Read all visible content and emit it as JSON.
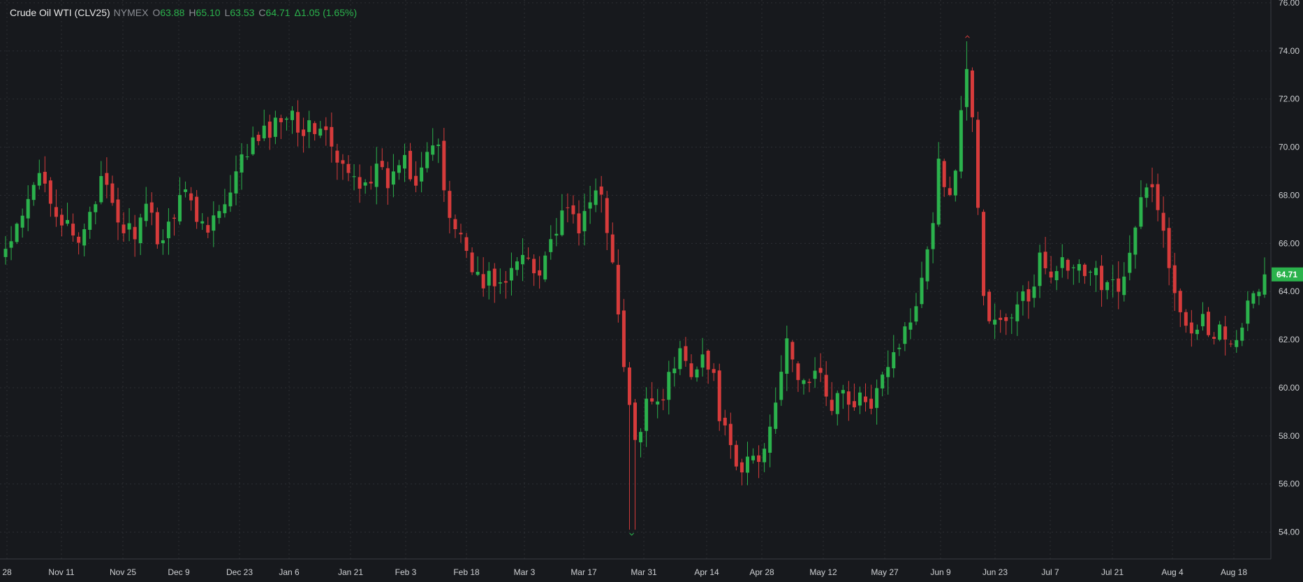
{
  "window": {
    "title": "Crude Oil WTI (CLV25) chart"
  },
  "legend": {
    "symbol": "Crude Oil WTI (CLV25)",
    "exchange": "NYMEX",
    "open_label": "O",
    "open": "63.88",
    "high_label": "H",
    "high": "65.10",
    "low_label": "L",
    "low": "63.53",
    "close_label": "C",
    "close": "64.71",
    "change": "Δ1.05 (1.65%)"
  },
  "last_price_tag": "64.71",
  "colors": {
    "background": "#17191d",
    "up": "#2bb24c",
    "down": "#d63b3b",
    "grid": "#2c2f34",
    "tag": "#2bb24c"
  },
  "chart_data": {
    "type": "candlestick",
    "title": "Crude Oil WTI (CLV25)",
    "x_tick_labels": [
      "28",
      "Nov 11",
      "Nov 25",
      "Dec 9",
      "Dec 23",
      "Jan 6",
      "Jan 21",
      "Feb 3",
      "Feb 18",
      "Mar 3",
      "Mar 17",
      "Mar 31",
      "Apr 14",
      "Apr 28",
      "May 12",
      "May 27",
      "Jun 9",
      "Jun 23",
      "Jul 7",
      "Jul 21",
      "Aug 4",
      "Aug 18"
    ],
    "y_ticks": [
      "54.00",
      "56.00",
      "58.00",
      "60.00",
      "62.00",
      "64.00",
      "66.00",
      "68.00",
      "70.00",
      "72.00",
      "74.00",
      "76.00"
    ],
    "ylim": [
      53.0,
      76.0
    ],
    "grid": true,
    "annotations": {
      "high_marker": 74.6,
      "low_marker": 53.9
    },
    "close_path": [
      {
        "t": 0,
        "c": 65.7
      },
      {
        "t": 6,
        "c": 66.6
      },
      {
        "t": 11,
        "c": 67.9
      },
      {
        "t": 16,
        "c": 69.2
      },
      {
        "t": 22,
        "c": 67.4
      },
      {
        "t": 28,
        "c": 66.4
      },
      {
        "t": 32,
        "c": 65.8
      },
      {
        "t": 37,
        "c": 67.5
      },
      {
        "t": 43,
        "c": 68.6
      },
      {
        "t": 48,
        "c": 67.1
      },
      {
        "t": 53,
        "c": 66.5
      },
      {
        "t": 58,
        "c": 66.6
      },
      {
        "t": 63,
        "c": 67.4
      },
      {
        "t": 68,
        "c": 66.0
      },
      {
        "t": 73,
        "c": 67.0
      },
      {
        "t": 78,
        "c": 68.6
      },
      {
        "t": 83,
        "c": 67.2
      },
      {
        "t": 88,
        "c": 66.8
      },
      {
        "t": 93,
        "c": 67.2
      },
      {
        "t": 98,
        "c": 67.6
      },
      {
        "t": 105,
        "c": 69.7
      },
      {
        "t": 110,
        "c": 70.2
      },
      {
        "t": 115,
        "c": 70.6
      },
      {
        "t": 120,
        "c": 71.0
      },
      {
        "t": 125,
        "c": 71.8
      },
      {
        "t": 130,
        "c": 70.8
      },
      {
        "t": 135,
        "c": 70.7
      },
      {
        "t": 140,
        "c": 71.0
      },
      {
        "t": 145,
        "c": 69.4
      },
      {
        "t": 150,
        "c": 68.9
      },
      {
        "t": 155,
        "c": 68.6
      },
      {
        "t": 160,
        "c": 68.8
      },
      {
        "t": 163,
        "c": 69.0
      },
      {
        "t": 170,
        "c": 68.4
      },
      {
        "t": 175,
        "c": 70.0
      },
      {
        "t": 180,
        "c": 68.6
      },
      {
        "t": 185,
        "c": 69.9
      },
      {
        "t": 190,
        "c": 70.1
      },
      {
        "t": 195,
        "c": 67.3
      },
      {
        "t": 200,
        "c": 66.4
      },
      {
        "t": 205,
        "c": 65.4
      },
      {
        "t": 210,
        "c": 64.1
      },
      {
        "t": 214,
        "c": 64.7
      },
      {
        "t": 219,
        "c": 64.1
      },
      {
        "t": 224,
        "c": 64.9
      },
      {
        "t": 229,
        "c": 65.7
      },
      {
        "t": 234,
        "c": 64.8
      },
      {
        "t": 239,
        "c": 65.9
      },
      {
        "t": 244,
        "c": 66.8
      },
      {
        "t": 249,
        "c": 67.3
      },
      {
        "t": 254,
        "c": 66.6
      },
      {
        "t": 259,
        "c": 68.0
      },
      {
        "t": 263,
        "c": 68.4
      },
      {
        "t": 268,
        "c": 64.6
      },
      {
        "t": 272,
        "c": 61.3
      },
      {
        "t": 276,
        "c": 58.3
      },
      {
        "t": 279,
        "c": 57.1
      },
      {
        "t": 283,
        "c": 60.1
      },
      {
        "t": 287,
        "c": 59.4
      },
      {
        "t": 292,
        "c": 60.2
      },
      {
        "t": 297,
        "c": 61.5
      },
      {
        "t": 302,
        "c": 60.8
      },
      {
        "t": 307,
        "c": 61.4
      },
      {
        "t": 312,
        "c": 60.3
      },
      {
        "t": 316,
        "c": 58.4
      },
      {
        "t": 320,
        "c": 57.1
      },
      {
        "t": 324,
        "c": 56.2
      },
      {
        "t": 328,
        "c": 57.4
      },
      {
        "t": 332,
        "c": 56.9
      },
      {
        "t": 336,
        "c": 58.2
      },
      {
        "t": 340,
        "c": 60.0
      },
      {
        "t": 344,
        "c": 61.7
      },
      {
        "t": 348,
        "c": 60.8
      },
      {
        "t": 352,
        "c": 60.1
      },
      {
        "t": 356,
        "c": 60.6
      },
      {
        "t": 360,
        "c": 60.2
      },
      {
        "t": 364,
        "c": 59.4
      },
      {
        "t": 368,
        "c": 59.9
      },
      {
        "t": 372,
        "c": 59.1
      },
      {
        "t": 376,
        "c": 59.7
      },
      {
        "t": 380,
        "c": 58.8
      },
      {
        "t": 384,
        "c": 60.4
      },
      {
        "t": 388,
        "c": 61.0
      },
      {
        "t": 392,
        "c": 61.6
      },
      {
        "t": 396,
        "c": 62.2
      },
      {
        "t": 400,
        "c": 63.2
      },
      {
        "t": 404,
        "c": 64.9
      },
      {
        "t": 408,
        "c": 66.6
      },
      {
        "t": 412,
        "c": 69.8
      },
      {
        "t": 416,
        "c": 67.5
      },
      {
        "t": 420,
        "c": 70.3
      },
      {
        "t": 424,
        "c": 73.8
      },
      {
        "t": 428,
        "c": 68.6
      },
      {
        "t": 432,
        "c": 62.6
      },
      {
        "t": 436,
        "c": 62.9
      },
      {
        "t": 440,
        "c": 62.5
      },
      {
        "t": 444,
        "c": 62.8
      },
      {
        "t": 448,
        "c": 64.3
      },
      {
        "t": 452,
        "c": 63.2
      },
      {
        "t": 456,
        "c": 65.3
      },
      {
        "t": 460,
        "c": 64.9
      },
      {
        "t": 464,
        "c": 65.3
      },
      {
        "t": 468,
        "c": 64.8
      },
      {
        "t": 472,
        "c": 65.0
      },
      {
        "t": 476,
        "c": 64.3
      },
      {
        "t": 480,
        "c": 64.7
      },
      {
        "t": 484,
        "c": 64.4
      },
      {
        "t": 488,
        "c": 64.6
      },
      {
        "t": 492,
        "c": 64.3
      },
      {
        "t": 496,
        "c": 65.6
      },
      {
        "t": 500,
        "c": 67.5
      },
      {
        "t": 504,
        "c": 68.4
      },
      {
        "t": 508,
        "c": 67.8
      },
      {
        "t": 512,
        "c": 65.2
      },
      {
        "t": 516,
        "c": 63.9
      },
      {
        "t": 520,
        "c": 62.9
      },
      {
        "t": 524,
        "c": 62.6
      },
      {
        "t": 528,
        "c": 62.9
      },
      {
        "t": 532,
        "c": 62.3
      },
      {
        "t": 536,
        "c": 62.5
      },
      {
        "t": 540,
        "c": 62.1
      },
      {
        "t": 544,
        "c": 62.6
      },
      {
        "t": 548,
        "c": 63.4
      },
      {
        "t": 552,
        "c": 64.0
      },
      {
        "t": 555,
        "c": 64.71
      }
    ]
  }
}
